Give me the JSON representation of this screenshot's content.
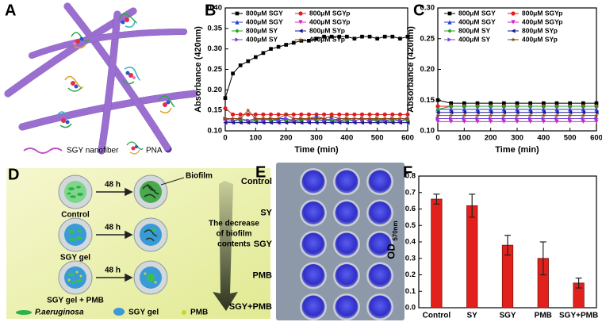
{
  "panel_A": {
    "label": "A",
    "legend": [
      "SGY nanofiber",
      "PNA"
    ]
  },
  "panel_D": {
    "label": "D",
    "time_labels": [
      "48 h",
      "48 h",
      "48 h"
    ],
    "callout": "Biofilm",
    "rows": [
      "Control",
      "SGY gel",
      "SGY gel + PMB"
    ],
    "arrow_text": [
      "The decrease",
      "of biofilm",
      "contents"
    ],
    "legend": [
      "P.aeruginosa",
      "SGY gel",
      "PMB"
    ]
  },
  "panel_E": {
    "label": "E",
    "rows": [
      "Control",
      "SY",
      "SGY",
      "PMB",
      "SGY+PMB"
    ]
  },
  "chart_data": [
    {
      "type": "line",
      "label": "B",
      "xlabel": "Time (min)",
      "ylabel": "Absorbance (420nm)",
      "x": [
        0,
        25,
        50,
        75,
        100,
        125,
        150,
        175,
        200,
        225,
        250,
        275,
        300,
        325,
        350,
        375,
        400,
        425,
        450,
        475,
        500,
        525,
        550,
        575,
        600
      ],
      "xlim": [
        0,
        600
      ],
      "xticks": [
        0,
        100,
        200,
        300,
        400,
        500,
        600
      ],
      "ylim": [
        0.1,
        0.4
      ],
      "yticks": [
        {
          "value": 0.1,
          "label": "0.10"
        },
        0.15,
        {
          "value": 0.2,
          "label": "0.20"
        },
        0.25,
        {
          "value": 0.3,
          "label": "0.30"
        },
        0.35,
        {
          "value": 0.4,
          "label": "0.40"
        }
      ],
      "series": [
        {
          "name": "800μM SGY",
          "color": "#000000",
          "marker": "square",
          "values": [
            0.18,
            0.24,
            0.26,
            0.27,
            0.28,
            0.29,
            0.3,
            0.305,
            0.31,
            0.315,
            0.32,
            0.32,
            0.325,
            0.33,
            0.33,
            0.33,
            0.33,
            0.325,
            0.33,
            0.33,
            0.325,
            0.33,
            0.33,
            0.325,
            0.33
          ]
        },
        {
          "name": "800μM SGYp",
          "color": "#e41a1c",
          "marker": "circle",
          "values": [
            0.155,
            0.14,
            0.14,
            0.14,
            0.14,
            0.14,
            0.14,
            0.14,
            0.14,
            0.14,
            0.14,
            0.14,
            0.14,
            0.14,
            0.14,
            0.14,
            0.14,
            0.14,
            0.14,
            0.14,
            0.14,
            0.14,
            0.14,
            0.14,
            0.14
          ]
        },
        {
          "name": "400μM SGY",
          "color": "#1f3bd6",
          "marker": "triangle-up",
          "values": [
            0.13,
            0.125,
            0.13,
            0.125,
            0.13,
            0.13,
            0.125,
            0.13,
            0.13,
            0.125,
            0.13,
            0.13,
            0.135,
            0.13,
            0.125,
            0.13,
            0.13,
            0.125,
            0.13,
            0.13,
            0.125,
            0.13,
            0.13,
            0.125,
            0.13
          ]
        },
        {
          "name": "400μM SGYp",
          "color": "#d61fd6",
          "marker": "triangle-down",
          "values": [
            0.125,
            0.12,
            0.12,
            0.12,
            0.125,
            0.12,
            0.12,
            0.12,
            0.12,
            0.125,
            0.12,
            0.12,
            0.12,
            0.12,
            0.12,
            0.125,
            0.12,
            0.12,
            0.12,
            0.12,
            0.12,
            0.125,
            0.12,
            0.12,
            0.12
          ]
        },
        {
          "name": "800μM SY",
          "color": "#2a9d2a",
          "marker": "diamond",
          "values": [
            0.13,
            0.125,
            0.125,
            0.125,
            0.125,
            0.13,
            0.125,
            0.125,
            0.125,
            0.125,
            0.125,
            0.13,
            0.125,
            0.125,
            0.125,
            0.125,
            0.125,
            0.125,
            0.13,
            0.125,
            0.125,
            0.125,
            0.125,
            0.125,
            0.125
          ]
        },
        {
          "name": "800μM SYp",
          "color": "#1a1a8c",
          "marker": "triangle-left",
          "values": [
            0.12,
            0.12,
            0.12,
            0.12,
            0.12,
            0.12,
            0.12,
            0.12,
            0.12,
            0.12,
            0.12,
            0.12,
            0.12,
            0.12,
            0.12,
            0.12,
            0.12,
            0.12,
            0.12,
            0.12,
            0.12,
            0.12,
            0.12,
            0.12,
            0.12
          ]
        },
        {
          "name": "400μM SY",
          "color": "#7a3fe0",
          "marker": "triangle-right",
          "values": [
            0.13,
            0.125,
            0.13,
            0.125,
            0.13,
            0.125,
            0.13,
            0.125,
            0.13,
            0.125,
            0.13,
            0.125,
            0.13,
            0.125,
            0.13,
            0.125,
            0.13,
            0.125,
            0.13,
            0.125,
            0.13,
            0.125,
            0.13,
            0.125,
            0.13
          ]
        },
        {
          "name": "400μM SYp",
          "color": "#8b4513",
          "marker": "star",
          "values": [
            0.13,
            0.13,
            0.13,
            0.15,
            0.13,
            0.13,
            0.13,
            0.13,
            0.14,
            0.13,
            0.13,
            0.13,
            0.13,
            0.13,
            0.135,
            0.13,
            0.13,
            0.13,
            0.13,
            0.13,
            0.13,
            0.13,
            0.13,
            0.13,
            0.13
          ]
        }
      ]
    },
    {
      "type": "line",
      "label": "C",
      "xlabel": "Time (min)",
      "ylabel": "Absorbance (420nm)",
      "x": [
        0,
        50,
        100,
        150,
        200,
        250,
        300,
        350,
        400,
        450,
        500,
        550,
        600
      ],
      "xlim": [
        0,
        600
      ],
      "xticks": [
        0,
        100,
        200,
        300,
        400,
        500,
        600
      ],
      "ylim": [
        0.1,
        0.3
      ],
      "yticks": [
        {
          "value": 0.1,
          "label": "0.10"
        },
        0.15,
        {
          "value": 0.2,
          "label": "0.20"
        },
        0.25,
        {
          "value": 0.3,
          "label": "0.30"
        }
      ],
      "series": [
        {
          "name": "800μM SGY",
          "color": "#000000",
          "marker": "square",
          "values": [
            0.15,
            0.145,
            0.145,
            0.145,
            0.145,
            0.145,
            0.145,
            0.145,
            0.145,
            0.145,
            0.145,
            0.145,
            0.145
          ]
        },
        {
          "name": "800μM SGYp",
          "color": "#e41a1c",
          "marker": "circle",
          "values": [
            0.14,
            0.14,
            0.14,
            0.14,
            0.14,
            0.14,
            0.14,
            0.14,
            0.14,
            0.14,
            0.14,
            0.14,
            0.14
          ]
        },
        {
          "name": "400μM SGY",
          "color": "#1f3bd6",
          "marker": "triangle-up",
          "values": [
            0.135,
            0.135,
            0.135,
            0.135,
            0.135,
            0.135,
            0.135,
            0.135,
            0.135,
            0.135,
            0.135,
            0.135,
            0.135
          ]
        },
        {
          "name": "400μM SGYp",
          "color": "#d61fd6",
          "marker": "triangle-down",
          "values": [
            0.115,
            0.115,
            0.115,
            0.115,
            0.115,
            0.115,
            0.115,
            0.115,
            0.115,
            0.115,
            0.115,
            0.115,
            0.115
          ]
        },
        {
          "name": "800μM SY",
          "color": "#2a9d2a",
          "marker": "diamond",
          "values": [
            0.135,
            0.14,
            0.14,
            0.14,
            0.14,
            0.14,
            0.14,
            0.14,
            0.14,
            0.14,
            0.14,
            0.14,
            0.14
          ]
        },
        {
          "name": "800μM SYp",
          "color": "#1a1a8c",
          "marker": "triangle-left",
          "values": [
            0.13,
            0.13,
            0.13,
            0.13,
            0.13,
            0.13,
            0.13,
            0.13,
            0.13,
            0.13,
            0.13,
            0.13,
            0.13
          ]
        },
        {
          "name": "400μM SY",
          "color": "#7a3fe0",
          "marker": "triangle-right",
          "values": [
            0.12,
            0.12,
            0.12,
            0.12,
            0.12,
            0.12,
            0.12,
            0.12,
            0.12,
            0.12,
            0.12,
            0.12,
            0.12
          ]
        },
        {
          "name": "400μM SYp",
          "color": "#8b4513",
          "marker": "star",
          "values": [
            0.125,
            0.125,
            0.125,
            0.125,
            0.125,
            0.125,
            0.125,
            0.125,
            0.125,
            0.125,
            0.125,
            0.125,
            0.125
          ]
        }
      ]
    },
    {
      "type": "bar",
      "label": "F",
      "ylabel": "OD",
      "ylabel_sub": "570nm",
      "categories": [
        "Control",
        "SY",
        "SGY",
        "PMB",
        "SGY+PMB"
      ],
      "values": [
        0.66,
        0.62,
        0.38,
        0.3,
        0.15
      ],
      "errors": [
        0.03,
        0.07,
        0.06,
        0.1,
        0.03
      ],
      "color": "#e3211c",
      "ylim": [
        0,
        0.8
      ],
      "yticks": [
        {
          "value": 0,
          "label": "0.0"
        },
        0.1,
        0.2,
        0.3,
        0.4,
        0.5,
        0.6,
        0.7,
        0.8
      ]
    }
  ]
}
